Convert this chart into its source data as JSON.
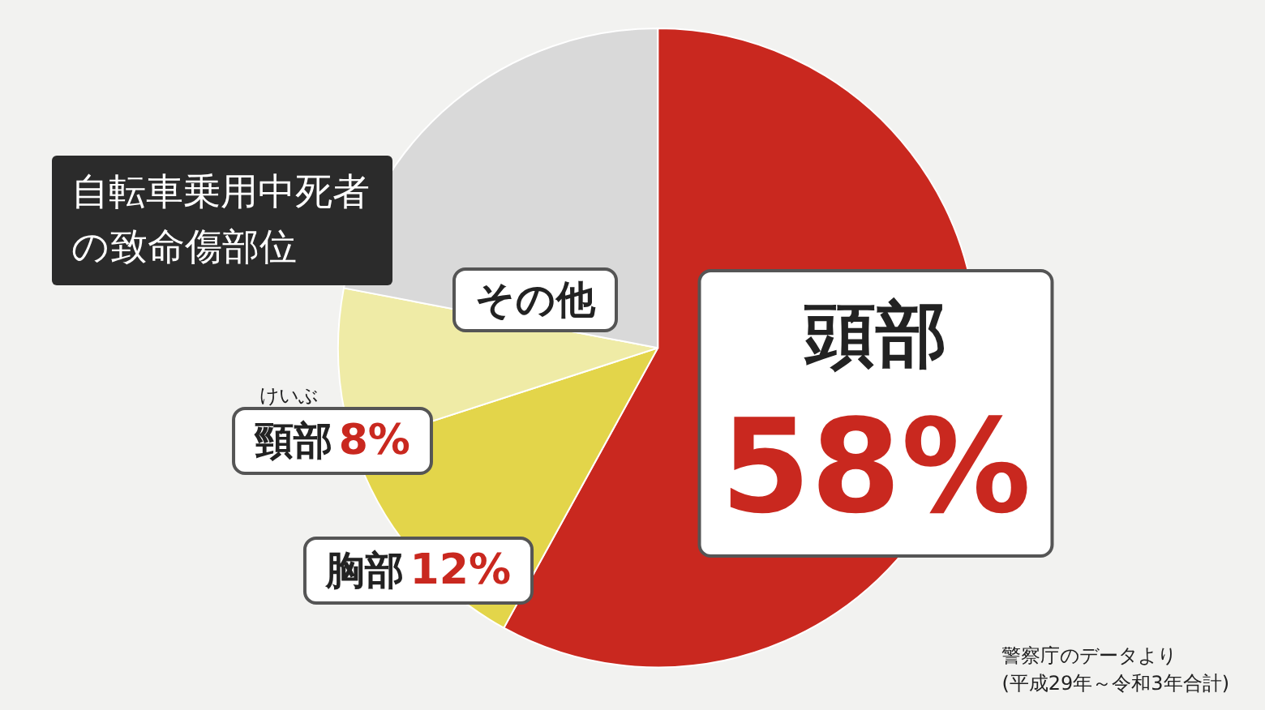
{
  "chart_data": {
    "type": "pie",
    "title": "自転車乗用中死者の致命傷部位",
    "categories": [
      "頭部",
      "胸部",
      "頸部",
      "その他"
    ],
    "values": [
      58,
      12,
      8,
      22
    ],
    "value_labels": [
      "58%",
      "12%",
      "8%",
      null
    ],
    "colors": [
      "#c9281f",
      "#e3d54a",
      "#efeba6",
      "#d9d9d9"
    ],
    "legend": false,
    "annotations": [
      "けいぶ",
      "警察庁のデータより\n(平成29年～令和3年合計)"
    ]
  }
}
